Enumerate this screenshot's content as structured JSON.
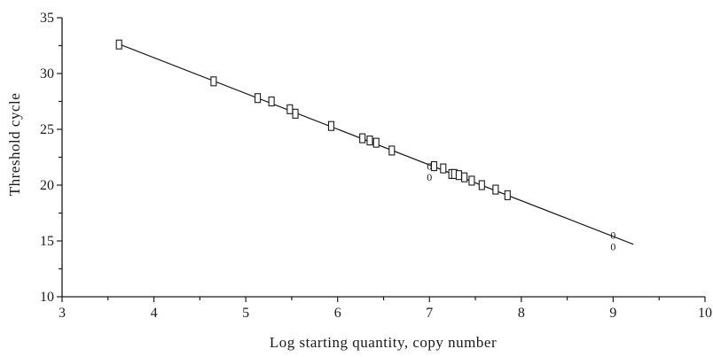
{
  "chart_data": {
    "type": "scatter",
    "title": "",
    "xlabel": "Log starting quantity, copy number",
    "ylabel": "Threshold cycle",
    "xlim": [
      3,
      10
    ],
    "ylim": [
      10,
      35
    ],
    "x_ticks": [
      3,
      4,
      5,
      6,
      7,
      8,
      9,
      10
    ],
    "y_ticks": [
      10,
      15,
      20,
      25,
      30,
      35
    ],
    "grid": false,
    "legend": "none",
    "series": [
      {
        "marker": "rectangle",
        "x": [
          3.62,
          4.65,
          5.13,
          5.28,
          5.48,
          5.54,
          5.93,
          6.27,
          6.35,
          6.42,
          6.59,
          7.05,
          7.15,
          7.24,
          7.27,
          7.32,
          7.38,
          7.46,
          7.57,
          7.72,
          7.85
        ],
        "y": [
          32.6,
          29.3,
          27.8,
          27.5,
          26.8,
          26.4,
          25.3,
          24.2,
          24.0,
          23.8,
          23.1,
          21.7,
          21.5,
          21.0,
          21.0,
          20.9,
          20.7,
          20.4,
          20.0,
          19.6,
          19.1
        ]
      },
      {
        "marker": "0",
        "x": [
          7.0,
          7.0,
          9.0,
          9.0
        ],
        "y": [
          21.7,
          20.7,
          15.5,
          14.5
        ]
      }
    ],
    "fit_line": {
      "x": [
        3.6,
        9.22
      ],
      "y": [
        32.7,
        14.7
      ]
    }
  }
}
